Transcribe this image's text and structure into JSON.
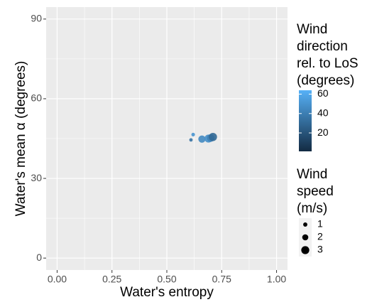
{
  "chart_data": {
    "type": "scatter",
    "x_label": "Water's entropy",
    "y_label": "Water's mean α (degrees)",
    "x": [
      0.61,
      0.62,
      0.66,
      0.69,
      0.7,
      0.71
    ],
    "series": [
      {
        "values": [
          44.5,
          46.5,
          44.8,
          45.0,
          45.2,
          45.6
        ],
        "direction": [
          35,
          50,
          45,
          48,
          42,
          30
        ],
        "speed": [
          0.6,
          0.7,
          2.6,
          3.0,
          2.8,
          3.1
        ]
      }
    ],
    "xlim": [
      -0.05,
      1.05
    ],
    "xticks": [
      {
        "value": 0,
        "label": "0.00"
      },
      {
        "value": 0.25,
        "label": "0.25"
      },
      {
        "value": 0.5,
        "label": "0.50"
      },
      {
        "value": 0.75,
        "label": "0.75"
      },
      {
        "value": 1,
        "label": "1.00"
      }
    ],
    "ylim": [
      -4.5,
      94.5
    ],
    "yticks": [
      0,
      30,
      60,
      90
    ],
    "grid": true,
    "color_legend": {
      "title": [
        "Wind",
        "direction",
        "rel. to LoS",
        "(degrees)"
      ],
      "colors": [
        "#132B43",
        "#56B1F7"
      ],
      "lim": [
        1,
        64
      ],
      "ticks": [
        20,
        40,
        60
      ]
    },
    "size_legend": {
      "title": [
        "Wind",
        "speed",
        "(m/s)"
      ],
      "breaks": [
        1,
        2,
        3
      ]
    }
  }
}
